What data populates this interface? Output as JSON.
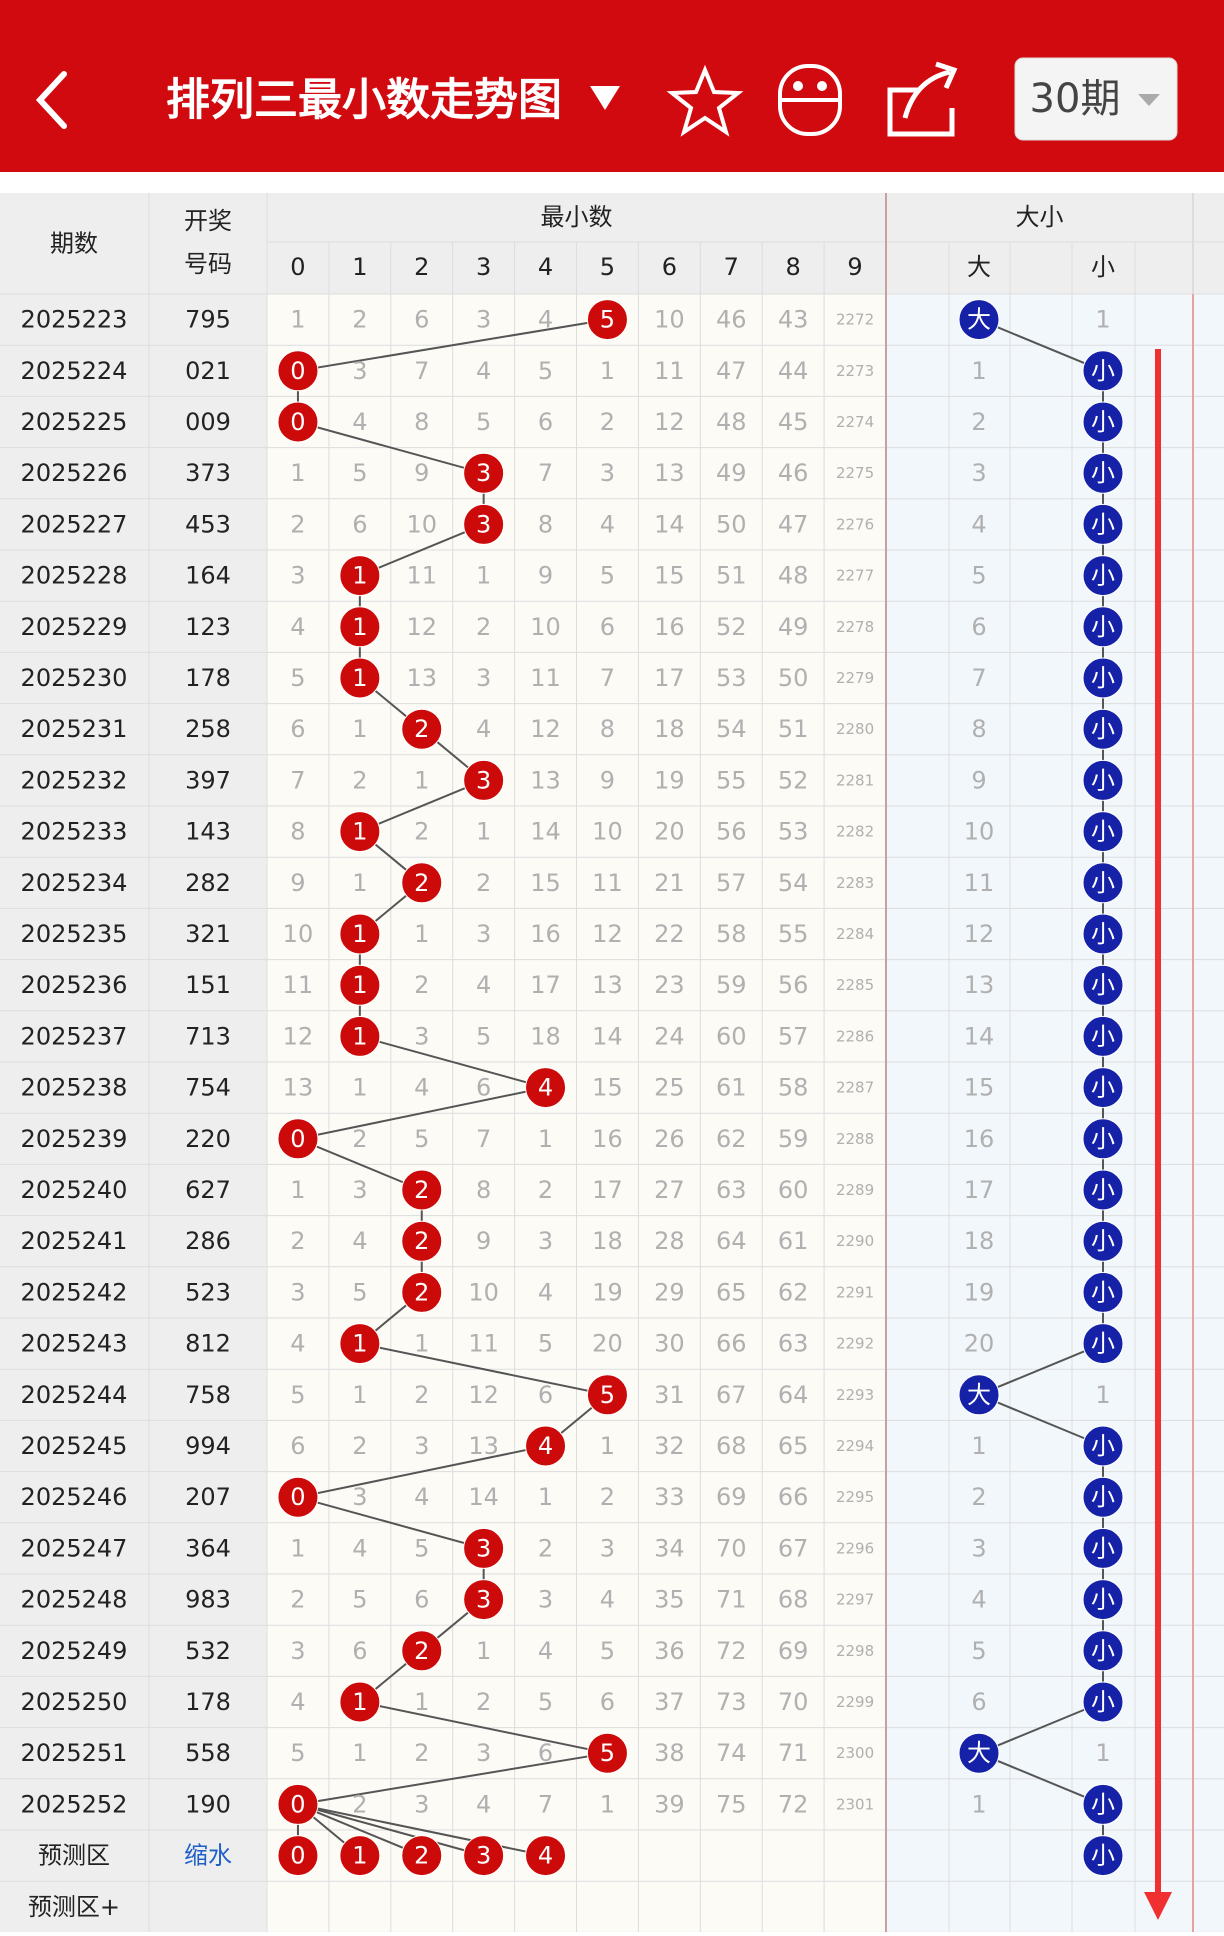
{
  "header": {
    "title": "排列三最小数走势图",
    "period_button": "30期"
  },
  "table": {
    "col_issue": "期数",
    "col_number": [
      "开奖",
      "号码"
    ],
    "group_min": "最小数",
    "digits": [
      "0",
      "1",
      "2",
      "3",
      "4",
      "5",
      "6",
      "7",
      "8",
      "9"
    ],
    "group_size": "大小",
    "size_cols": [
      "大",
      "小"
    ],
    "rows": [
      {
        "issue": "2025223",
        "number": "795",
        "min": "5",
        "cells": [
          "1",
          "2",
          "6",
          "3",
          "4",
          null,
          "10",
          "46",
          "43",
          "2272"
        ],
        "size": "大",
        "size_cells": [
          null,
          "1"
        ]
      },
      {
        "issue": "2025224",
        "number": "021",
        "min": "0",
        "cells": [
          null,
          "3",
          "7",
          "4",
          "5",
          "1",
          "11",
          "47",
          "44",
          "2273"
        ],
        "size": "小",
        "size_cells": [
          "1",
          null
        ]
      },
      {
        "issue": "2025225",
        "number": "009",
        "min": "0",
        "cells": [
          null,
          "4",
          "8",
          "5",
          "6",
          "2",
          "12",
          "48",
          "45",
          "2274"
        ],
        "size": "小",
        "size_cells": [
          "2",
          null
        ]
      },
      {
        "issue": "2025226",
        "number": "373",
        "min": "3",
        "cells": [
          "1",
          "5",
          "9",
          null,
          "7",
          "3",
          "13",
          "49",
          "46",
          "2275"
        ],
        "size": "小",
        "size_cells": [
          "3",
          null
        ]
      },
      {
        "issue": "2025227",
        "number": "453",
        "min": "3",
        "cells": [
          "2",
          "6",
          "10",
          null,
          "8",
          "4",
          "14",
          "50",
          "47",
          "2276"
        ],
        "size": "小",
        "size_cells": [
          "4",
          null
        ]
      },
      {
        "issue": "2025228",
        "number": "164",
        "min": "1",
        "cells": [
          "3",
          null,
          "11",
          "1",
          "9",
          "5",
          "15",
          "51",
          "48",
          "2277"
        ],
        "size": "小",
        "size_cells": [
          "5",
          null
        ]
      },
      {
        "issue": "2025229",
        "number": "123",
        "min": "1",
        "cells": [
          "4",
          null,
          "12",
          "2",
          "10",
          "6",
          "16",
          "52",
          "49",
          "2278"
        ],
        "size": "小",
        "size_cells": [
          "6",
          null
        ]
      },
      {
        "issue": "2025230",
        "number": "178",
        "min": "1",
        "cells": [
          "5",
          null,
          "13",
          "3",
          "11",
          "7",
          "17",
          "53",
          "50",
          "2279"
        ],
        "size": "小",
        "size_cells": [
          "7",
          null
        ]
      },
      {
        "issue": "2025231",
        "number": "258",
        "min": "2",
        "cells": [
          "6",
          "1",
          null,
          "4",
          "12",
          "8",
          "18",
          "54",
          "51",
          "2280"
        ],
        "size": "小",
        "size_cells": [
          "8",
          null
        ]
      },
      {
        "issue": "2025232",
        "number": "397",
        "min": "3",
        "cells": [
          "7",
          "2",
          "1",
          null,
          "13",
          "9",
          "19",
          "55",
          "52",
          "2281"
        ],
        "size": "小",
        "size_cells": [
          "9",
          null
        ]
      },
      {
        "issue": "2025233",
        "number": "143",
        "min": "1",
        "cells": [
          "8",
          null,
          "2",
          "1",
          "14",
          "10",
          "20",
          "56",
          "53",
          "2282"
        ],
        "size": "小",
        "size_cells": [
          "10",
          null
        ]
      },
      {
        "issue": "2025234",
        "number": "282",
        "min": "2",
        "cells": [
          "9",
          "1",
          null,
          "2",
          "15",
          "11",
          "21",
          "57",
          "54",
          "2283"
        ],
        "size": "小",
        "size_cells": [
          "11",
          null
        ]
      },
      {
        "issue": "2025235",
        "number": "321",
        "min": "1",
        "cells": [
          "10",
          null,
          "1",
          "3",
          "16",
          "12",
          "22",
          "58",
          "55",
          "2284"
        ],
        "size": "小",
        "size_cells": [
          "12",
          null
        ]
      },
      {
        "issue": "2025236",
        "number": "151",
        "min": "1",
        "cells": [
          "11",
          null,
          "2",
          "4",
          "17",
          "13",
          "23",
          "59",
          "56",
          "2285"
        ],
        "size": "小",
        "size_cells": [
          "13",
          null
        ]
      },
      {
        "issue": "2025237",
        "number": "713",
        "min": "1",
        "cells": [
          "12",
          null,
          "3",
          "5",
          "18",
          "14",
          "24",
          "60",
          "57",
          "2286"
        ],
        "size": "小",
        "size_cells": [
          "14",
          null
        ]
      },
      {
        "issue": "2025238",
        "number": "754",
        "min": "4",
        "cells": [
          "13",
          "1",
          "4",
          "6",
          null,
          "15",
          "25",
          "61",
          "58",
          "2287"
        ],
        "size": "小",
        "size_cells": [
          "15",
          null
        ]
      },
      {
        "issue": "2025239",
        "number": "220",
        "min": "0",
        "cells": [
          null,
          "2",
          "5",
          "7",
          "1",
          "16",
          "26",
          "62",
          "59",
          "2288"
        ],
        "size": "小",
        "size_cells": [
          "16",
          null
        ]
      },
      {
        "issue": "2025240",
        "number": "627",
        "min": "2",
        "cells": [
          "1",
          "3",
          null,
          "8",
          "2",
          "17",
          "27",
          "63",
          "60",
          "2289"
        ],
        "size": "小",
        "size_cells": [
          "17",
          null
        ]
      },
      {
        "issue": "2025241",
        "number": "286",
        "min": "2",
        "cells": [
          "2",
          "4",
          null,
          "9",
          "3",
          "18",
          "28",
          "64",
          "61",
          "2290"
        ],
        "size": "小",
        "size_cells": [
          "18",
          null
        ]
      },
      {
        "issue": "2025242",
        "number": "523",
        "min": "2",
        "cells": [
          "3",
          "5",
          null,
          "10",
          "4",
          "19",
          "29",
          "65",
          "62",
          "2291"
        ],
        "size": "小",
        "size_cells": [
          "19",
          null
        ]
      },
      {
        "issue": "2025243",
        "number": "812",
        "min": "1",
        "cells": [
          "4",
          null,
          "1",
          "11",
          "5",
          "20",
          "30",
          "66",
          "63",
          "2292"
        ],
        "size": "小",
        "size_cells": [
          "20",
          null
        ]
      },
      {
        "issue": "2025244",
        "number": "758",
        "min": "5",
        "cells": [
          "5",
          "1",
          "2",
          "12",
          "6",
          null,
          "31",
          "67",
          "64",
          "2293"
        ],
        "size": "大",
        "size_cells": [
          null,
          "1"
        ]
      },
      {
        "issue": "2025245",
        "number": "994",
        "min": "4",
        "cells": [
          "6",
          "2",
          "3",
          "13",
          null,
          "1",
          "32",
          "68",
          "65",
          "2294"
        ],
        "size": "小",
        "size_cells": [
          "1",
          null
        ]
      },
      {
        "issue": "2025246",
        "number": "207",
        "min": "0",
        "cells": [
          null,
          "3",
          "4",
          "14",
          "1",
          "2",
          "33",
          "69",
          "66",
          "2295"
        ],
        "size": "小",
        "size_cells": [
          "2",
          null
        ]
      },
      {
        "issue": "2025247",
        "number": "364",
        "min": "3",
        "cells": [
          "1",
          "4",
          "5",
          null,
          "2",
          "3",
          "34",
          "70",
          "67",
          "2296"
        ],
        "size": "小",
        "size_cells": [
          "3",
          null
        ]
      },
      {
        "issue": "2025248",
        "number": "983",
        "min": "3",
        "cells": [
          "2",
          "5",
          "6",
          null,
          "3",
          "4",
          "35",
          "71",
          "68",
          "2297"
        ],
        "size": "小",
        "size_cells": [
          "4",
          null
        ]
      },
      {
        "issue": "2025249",
        "number": "532",
        "min": "2",
        "cells": [
          "3",
          "6",
          null,
          "1",
          "4",
          "5",
          "36",
          "72",
          "69",
          "2298"
        ],
        "size": "小",
        "size_cells": [
          "5",
          null
        ]
      },
      {
        "issue": "2025250",
        "number": "178",
        "min": "1",
        "cells": [
          "4",
          null,
          "1",
          "2",
          "5",
          "6",
          "37",
          "73",
          "70",
          "2299"
        ],
        "size": "小",
        "size_cells": [
          "6",
          null
        ]
      },
      {
        "issue": "2025251",
        "number": "558",
        "min": "5",
        "cells": [
          "5",
          "1",
          "2",
          "3",
          "6",
          null,
          "38",
          "74",
          "71",
          "2300"
        ],
        "size": "大",
        "size_cells": [
          null,
          "1"
        ]
      },
      {
        "issue": "2025252",
        "number": "190",
        "min": "0",
        "cells": [
          null,
          "2",
          "3",
          "4",
          "7",
          "1",
          "39",
          "75",
          "72",
          "2301"
        ],
        "size": "小",
        "size_cells": [
          "1",
          null
        ]
      }
    ],
    "prediction": {
      "label": "预测区",
      "filter": "缩水",
      "balls": [
        "0",
        "1",
        "2",
        "3",
        "4"
      ],
      "size": "小"
    },
    "prediction_plus": {
      "label": "预测区+"
    }
  }
}
